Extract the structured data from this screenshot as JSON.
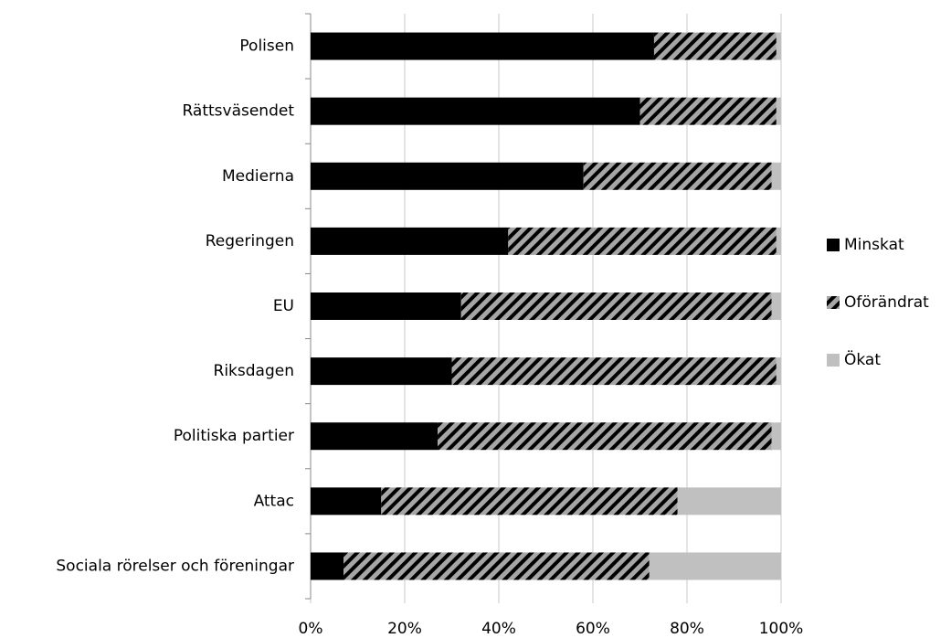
{
  "chart_data": {
    "type": "stacked-barh",
    "categories": [
      "Polisen",
      "Rättsväsendet",
      "Medierna",
      "Regeringen",
      "EU",
      "Riksdagen",
      "Politiska partier",
      "Attac",
      "Sociala rörelser och föreningar"
    ],
    "series": [
      {
        "name": "Minskat",
        "color": "#000000",
        "values": [
          73,
          70,
          58,
          42,
          32,
          30,
          27,
          15,
          7
        ]
      },
      {
        "name": "Oförändrat",
        "color": "#a6a6a6",
        "hatch": true,
        "values": [
          26,
          29,
          40,
          57,
          66,
          69,
          71,
          63,
          65
        ]
      },
      {
        "name": "Ökat",
        "color": "#c0c0c0",
        "values": [
          1,
          1,
          2,
          1,
          2,
          1,
          2,
          22,
          28
        ]
      }
    ],
    "xlim": [
      0,
      100
    ],
    "xticks": [
      {
        "value": 0,
        "label": "0%"
      },
      {
        "value": 20,
        "label": "20%"
      },
      {
        "value": 40,
        "label": "40%"
      },
      {
        "value": 60,
        "label": "60%"
      },
      {
        "value": 80,
        "label": "80%"
      },
      {
        "value": 100,
        "label": "100%"
      }
    ],
    "grid": true,
    "legend": "right"
  }
}
